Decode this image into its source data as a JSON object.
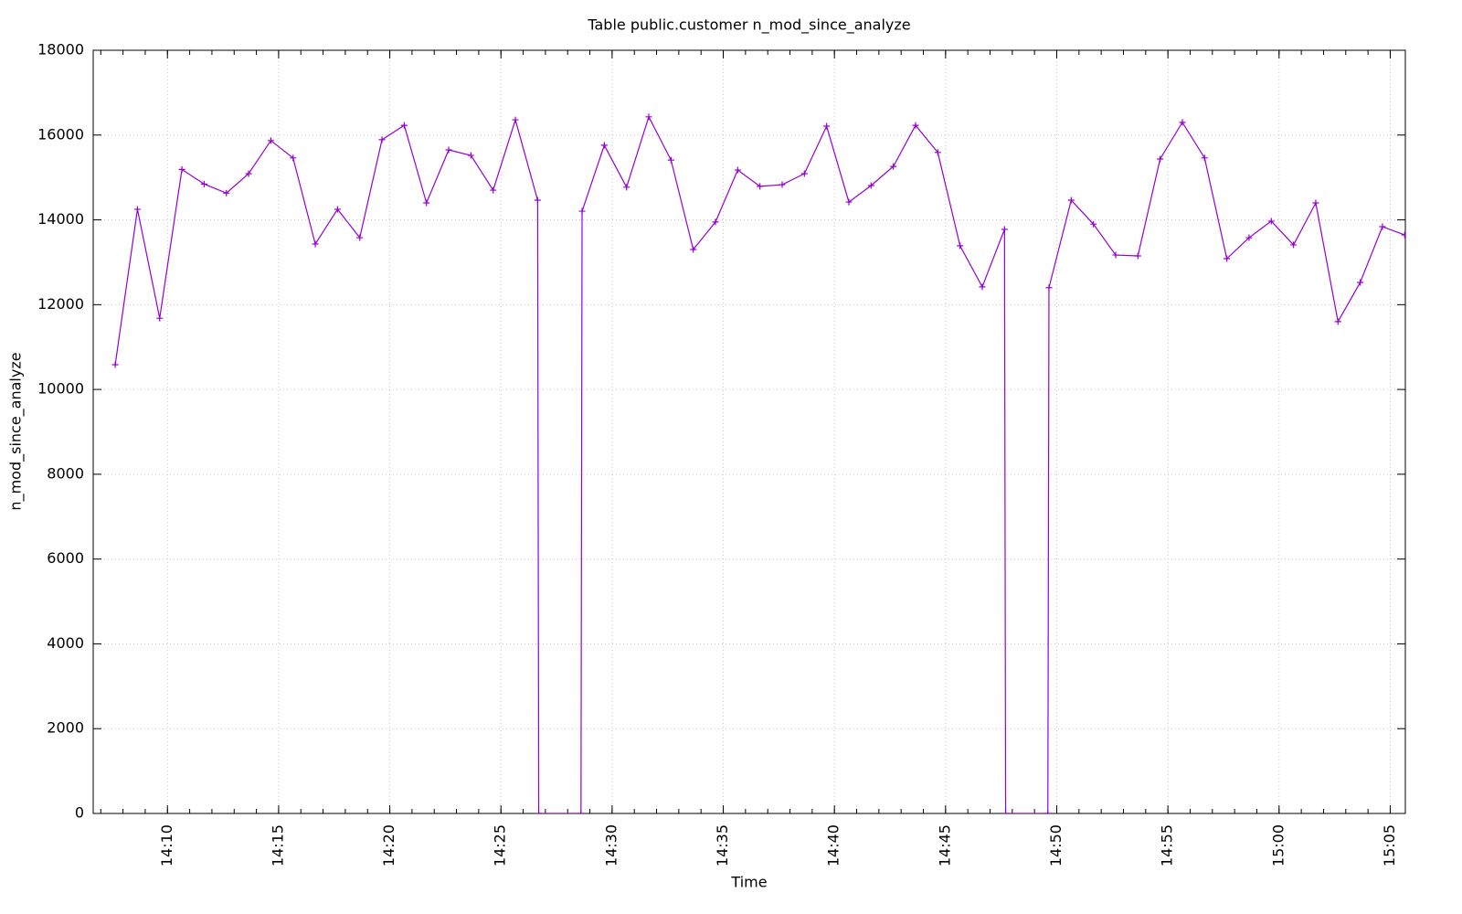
{
  "chart_data": {
    "type": "line",
    "title": "Table public.customer n_mod_since_analyze",
    "xlabel": "Time",
    "ylabel": "n_mod_since_analyze",
    "color": "#9400d3",
    "grid": true,
    "x": [
      847.65,
      848.65,
      849.65,
      850.65,
      851.65,
      852.65,
      853.65,
      854.65,
      855.65,
      856.65,
      857.65,
      858.65,
      859.65,
      860.65,
      861.65,
      862.65,
      863.65,
      864.65,
      865.65,
      866.65,
      866.7,
      868.6,
      868.65,
      869.65,
      870.65,
      871.65,
      872.65,
      873.65,
      874.65,
      875.65,
      876.65,
      877.65,
      878.65,
      879.65,
      880.65,
      881.65,
      882.65,
      883.65,
      884.65,
      885.65,
      886.65,
      887.65,
      887.7,
      889.6,
      889.65,
      890.65,
      891.65,
      892.65,
      893.65,
      894.65,
      895.65,
      896.65,
      897.65,
      898.65,
      899.65,
      900.65,
      901.65,
      902.65,
      903.65,
      904.65,
      905.65
    ],
    "values": [
      10585,
      14250,
      11680,
      15190,
      14845,
      14630,
      15090,
      15870,
      15460,
      13430,
      14250,
      13580,
      15890,
      16230,
      14400,
      15650,
      15520,
      14700,
      16360,
      14465,
      0,
      0,
      14205,
      15760,
      14770,
      16430,
      15410,
      13300,
      13950,
      15175,
      14790,
      14830,
      15090,
      16210,
      14420,
      14810,
      15260,
      16230,
      15590,
      13390,
      12420,
      13775,
      0,
      0,
      12400,
      14465,
      13900,
      13170,
      13150,
      15435,
      16300,
      15460,
      13085,
      13580,
      13970,
      13410,
      14400,
      11600,
      12525,
      13840,
      13645
    ],
    "xlim": [
      846.66,
      905.68
    ],
    "xticks": [
      {
        "value": 850,
        "label": "14:10"
      },
      {
        "value": 855,
        "label": "14:15"
      },
      {
        "value": 860,
        "label": "14:20"
      },
      {
        "value": 865,
        "label": "14:25"
      },
      {
        "value": 870,
        "label": "14:30"
      },
      {
        "value": 875,
        "label": "14:35"
      },
      {
        "value": 880,
        "label": "14:40"
      },
      {
        "value": 885,
        "label": "14:45"
      },
      {
        "value": 890,
        "label": "14:50"
      },
      {
        "value": 895,
        "label": "14:55"
      },
      {
        "value": 900,
        "label": "15:00"
      },
      {
        "value": 905,
        "label": "15:05"
      }
    ],
    "ylim": [
      0,
      18000
    ],
    "yticks": [
      0,
      2000,
      4000,
      6000,
      8000,
      10000,
      12000,
      14000,
      16000,
      18000
    ]
  }
}
